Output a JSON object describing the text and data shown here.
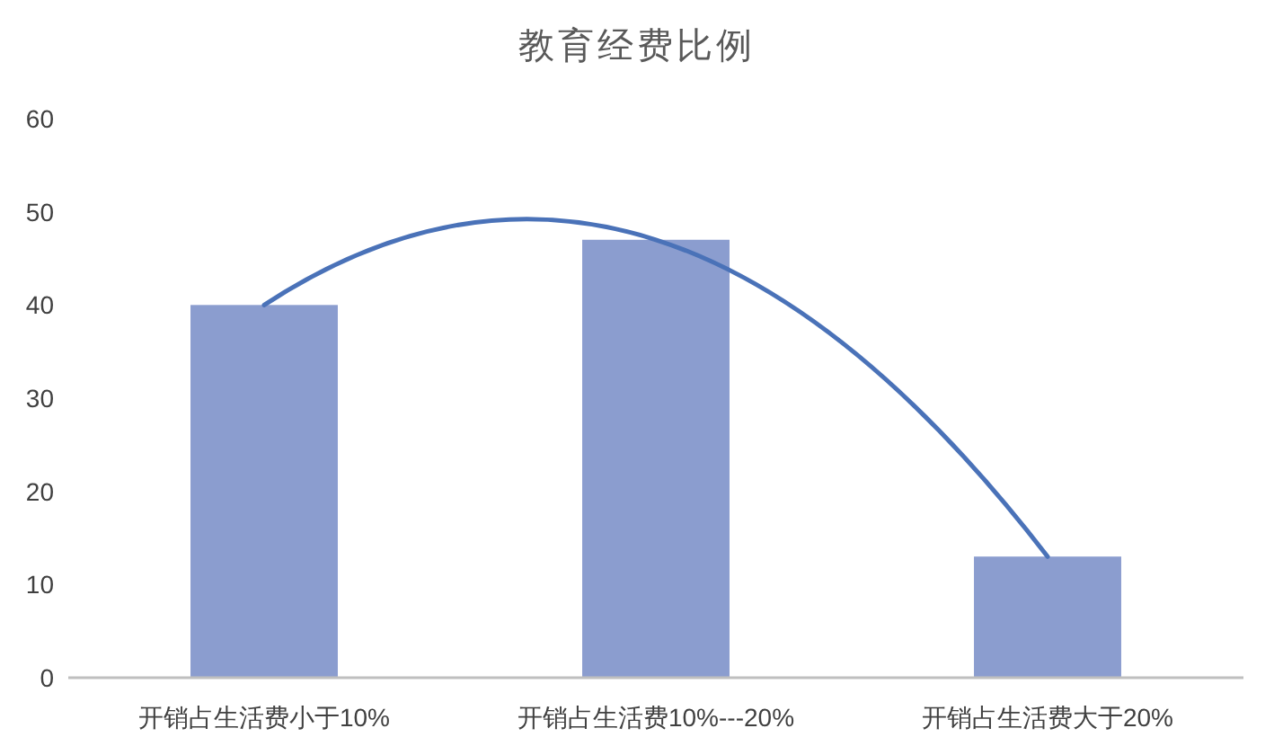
{
  "chart_data": {
    "type": "bar",
    "title": "教育经费比例",
    "categories": [
      "开销占生活费小于10%",
      "开销占生活费10%---20%",
      "开销占生活费大于20%"
    ],
    "ylim": [
      0,
      60
    ],
    "yticks": [
      0,
      10,
      20,
      30,
      40,
      50,
      60
    ],
    "series": [
      {
        "color": "#8b9dcf",
        "values": [
          40,
          47,
          13
        ]
      },
      {
        "type": "line",
        "color": "#4a72b8",
        "values": [
          40,
          47,
          13
        ]
      }
    ]
  }
}
